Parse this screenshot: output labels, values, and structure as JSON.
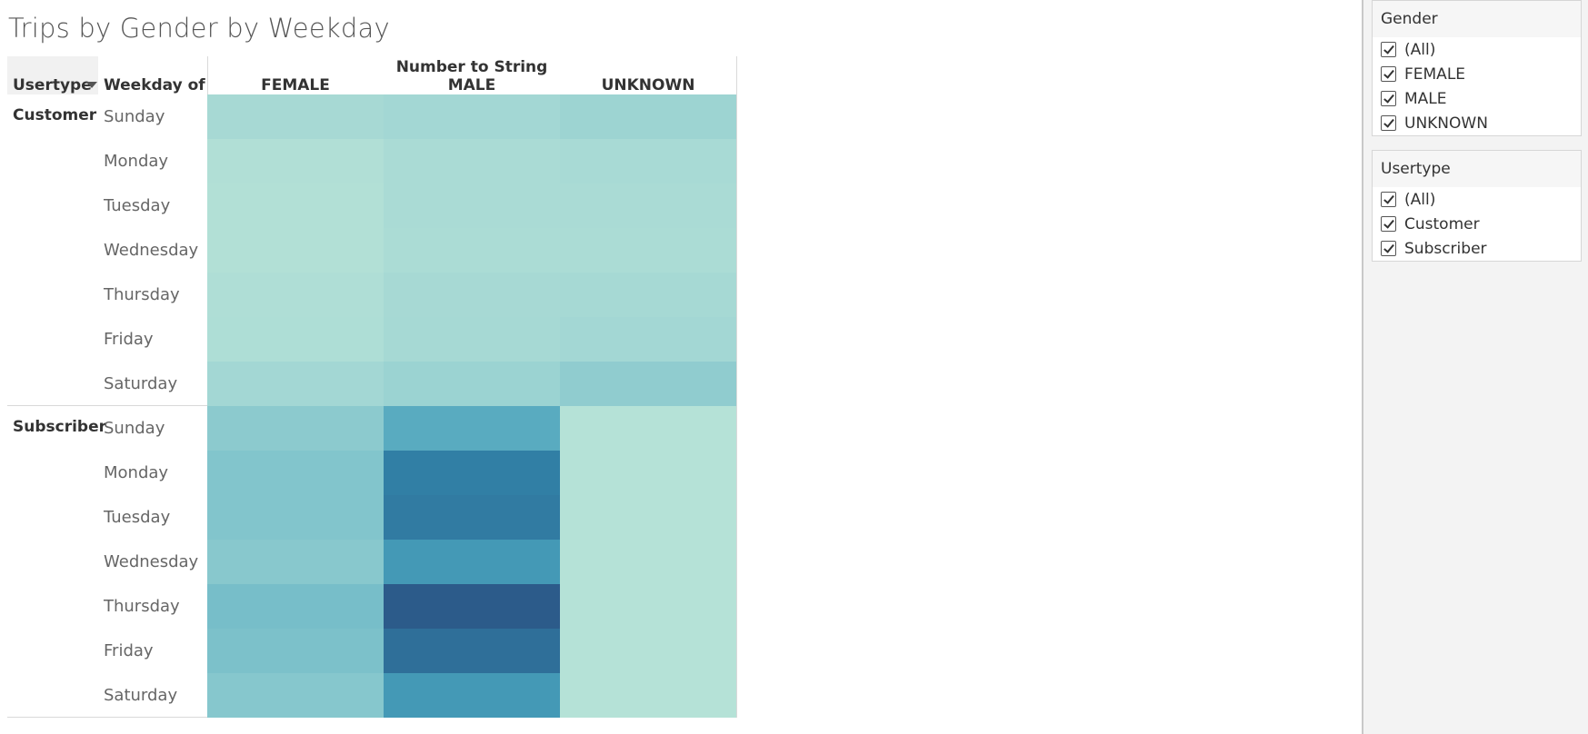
{
  "title": "Trips by Gender by Weekday",
  "header": {
    "usertype_label": "Usertype",
    "weekday_label": "Weekday of ..",
    "column_group_title": "Number to String",
    "columns": [
      "FEMALE",
      "MALE",
      "UNKNOWN"
    ]
  },
  "rows": {
    "usertypes": [
      "Customer",
      "Subscriber"
    ],
    "weekdays": [
      "Sunday",
      "Monday",
      "Tuesday",
      "Wednesday",
      "Thursday",
      "Friday",
      "Saturday"
    ]
  },
  "chart_data": {
    "type": "heatmap",
    "title": "Trips by Gender by Weekday",
    "columns": [
      "FEMALE",
      "MALE",
      "UNKNOWN"
    ],
    "rows": [
      {
        "usertype": "Customer",
        "weekday": "Sunday",
        "values": [
          0.18,
          0.21,
          0.24
        ]
      },
      {
        "usertype": "Customer",
        "weekday": "Monday",
        "values": [
          0.1,
          0.16,
          0.17
        ]
      },
      {
        "usertype": "Customer",
        "weekday": "Tuesday",
        "values": [
          0.09,
          0.16,
          0.16
        ]
      },
      {
        "usertype": "Customer",
        "weekday": "Wednesday",
        "values": [
          0.09,
          0.15,
          0.15
        ]
      },
      {
        "usertype": "Customer",
        "weekday": "Thursday",
        "values": [
          0.11,
          0.18,
          0.19
        ]
      },
      {
        "usertype": "Customer",
        "weekday": "Friday",
        "values": [
          0.12,
          0.19,
          0.21
        ]
      },
      {
        "usertype": "Customer",
        "weekday": "Saturday",
        "values": [
          0.21,
          0.25,
          0.31
        ]
      },
      {
        "usertype": "Subscriber",
        "weekday": "Sunday",
        "values": [
          0.33,
          0.55,
          0.06
        ]
      },
      {
        "usertype": "Subscriber",
        "weekday": "Monday",
        "values": [
          0.38,
          0.82,
          0.06
        ]
      },
      {
        "usertype": "Subscriber",
        "weekday": "Tuesday",
        "values": [
          0.38,
          0.84,
          0.06
        ]
      },
      {
        "usertype": "Subscriber",
        "weekday": "Wednesday",
        "values": [
          0.35,
          0.66,
          0.06
        ]
      },
      {
        "usertype": "Subscriber",
        "weekday": "Thursday",
        "values": [
          0.43,
          1.0,
          0.06
        ]
      },
      {
        "usertype": "Subscriber",
        "weekday": "Friday",
        "values": [
          0.41,
          0.9,
          0.06
        ]
      },
      {
        "usertype": "Subscriber",
        "weekday": "Saturday",
        "values": [
          0.36,
          0.66,
          0.06
        ]
      }
    ],
    "color_scale": [
      "#bce6d8",
      "#a5d8d4",
      "#7ec3cb",
      "#4ca3bc",
      "#3283a8",
      "#2c5b8a"
    ]
  },
  "filters": [
    {
      "title": "Gender",
      "items": [
        "(All)",
        "FEMALE",
        "MALE",
        "UNKNOWN"
      ],
      "checked": [
        true,
        true,
        true,
        true
      ]
    },
    {
      "title": "Usertype",
      "items": [
        "(All)",
        "Customer",
        "Subscriber"
      ],
      "checked": [
        true,
        true,
        true
      ]
    }
  ],
  "colors": {
    "grid_line": "#d9d9d9",
    "panel_bg": "#f3f3f3"
  }
}
